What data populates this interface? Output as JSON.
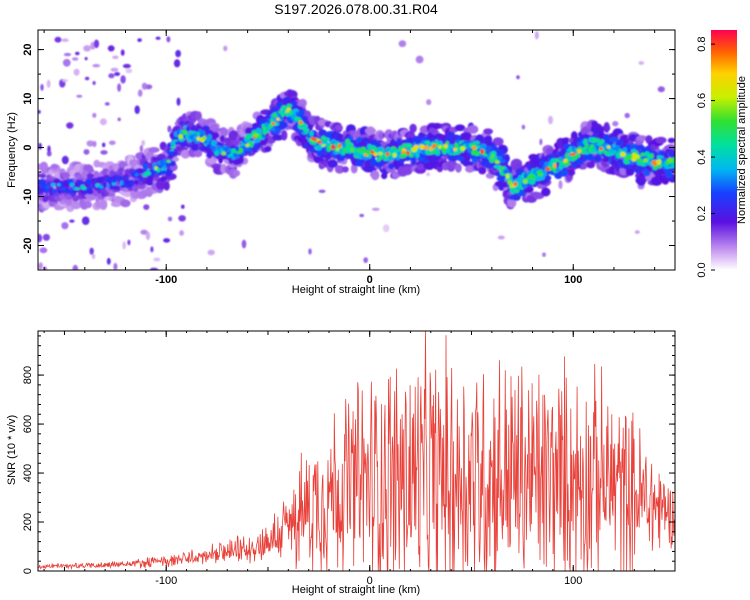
{
  "title": "S197.2026.078.00.31.R04",
  "chart_data": [
    {
      "type": "heatmap",
      "name": "spectrogram",
      "xlabel": "Height of straight line (km)",
      "ylabel": "Frequency (Hz)",
      "xlim": [
        -163,
        150
      ],
      "ylim": [
        -25,
        24
      ],
      "xticks": [
        -100,
        0,
        100
      ],
      "yticks": [
        -20,
        -10,
        0,
        10,
        20
      ],
      "colorbar": {
        "label": "Normalized spectral amplitude",
        "range": [
          0,
          0.85
        ],
        "ticks": [
          0.0,
          0.2,
          0.4,
          0.6,
          0.8
        ]
      },
      "ridge": {
        "x": [
          -160,
          -150,
          -140,
          -130,
          -120,
          -110,
          -100,
          -95,
          -90,
          -85,
          -80,
          -75,
          -70,
          -65,
          -60,
          -55,
          -50,
          -45,
          -40,
          -35,
          -30,
          -25,
          -20,
          -15,
          -10,
          -5,
          0,
          5,
          10,
          20,
          30,
          40,
          50,
          55,
          60,
          65,
          70,
          75,
          80,
          85,
          90,
          95,
          100,
          105,
          110,
          115,
          120,
          125,
          130,
          135,
          140,
          145,
          150
        ],
        "y": [
          -8,
          -8,
          -8,
          -7.5,
          -7,
          -5,
          -4,
          2,
          3,
          2.5,
          1.5,
          0,
          -1,
          -1,
          1,
          2.5,
          4,
          6,
          7.5,
          6,
          2,
          1,
          0.5,
          0,
          0,
          -1,
          -1,
          -1.5,
          -1.5,
          -0.5,
          0,
          0,
          0,
          -0.5,
          -1.5,
          -4,
          -8,
          -7,
          -6,
          -5,
          -4,
          -3,
          -1,
          0,
          0.5,
          0,
          -0.5,
          -1.5,
          -2,
          -2.5,
          -3,
          -3,
          -3
        ]
      }
    },
    {
      "type": "line",
      "name": "snr",
      "xlabel": "Height of straight line (km)",
      "ylabel": "SNR (10 * v/v)",
      "color": "#e8413a",
      "xlim": [
        -163,
        150
      ],
      "ylim": [
        0,
        980
      ],
      "xticks": [
        -100,
        0,
        100
      ],
      "yticks": [
        0,
        200,
        400,
        600,
        800
      ],
      "envelope": {
        "x": [
          -163,
          -140,
          -120,
          -100,
          -80,
          -60,
          -50,
          -40,
          -30,
          -20,
          -10,
          0,
          10,
          20,
          30,
          40,
          50,
          60,
          70,
          80,
          90,
          100,
          110,
          120,
          130,
          140,
          150
        ],
        "base": [
          18,
          22,
          28,
          40,
          60,
          90,
          120,
          180,
          260,
          320,
          350,
          360,
          380,
          380,
          380,
          390,
          390,
          390,
          390,
          380,
          370,
          380,
          380,
          360,
          310,
          270,
          230
        ],
        "amp": [
          12,
          15,
          20,
          30,
          45,
          70,
          100,
          200,
          320,
          420,
          500,
          560,
          620,
          660,
          640,
          640,
          620,
          620,
          600,
          580,
          600,
          560,
          520,
          480,
          400,
          300,
          120
        ]
      }
    }
  ]
}
